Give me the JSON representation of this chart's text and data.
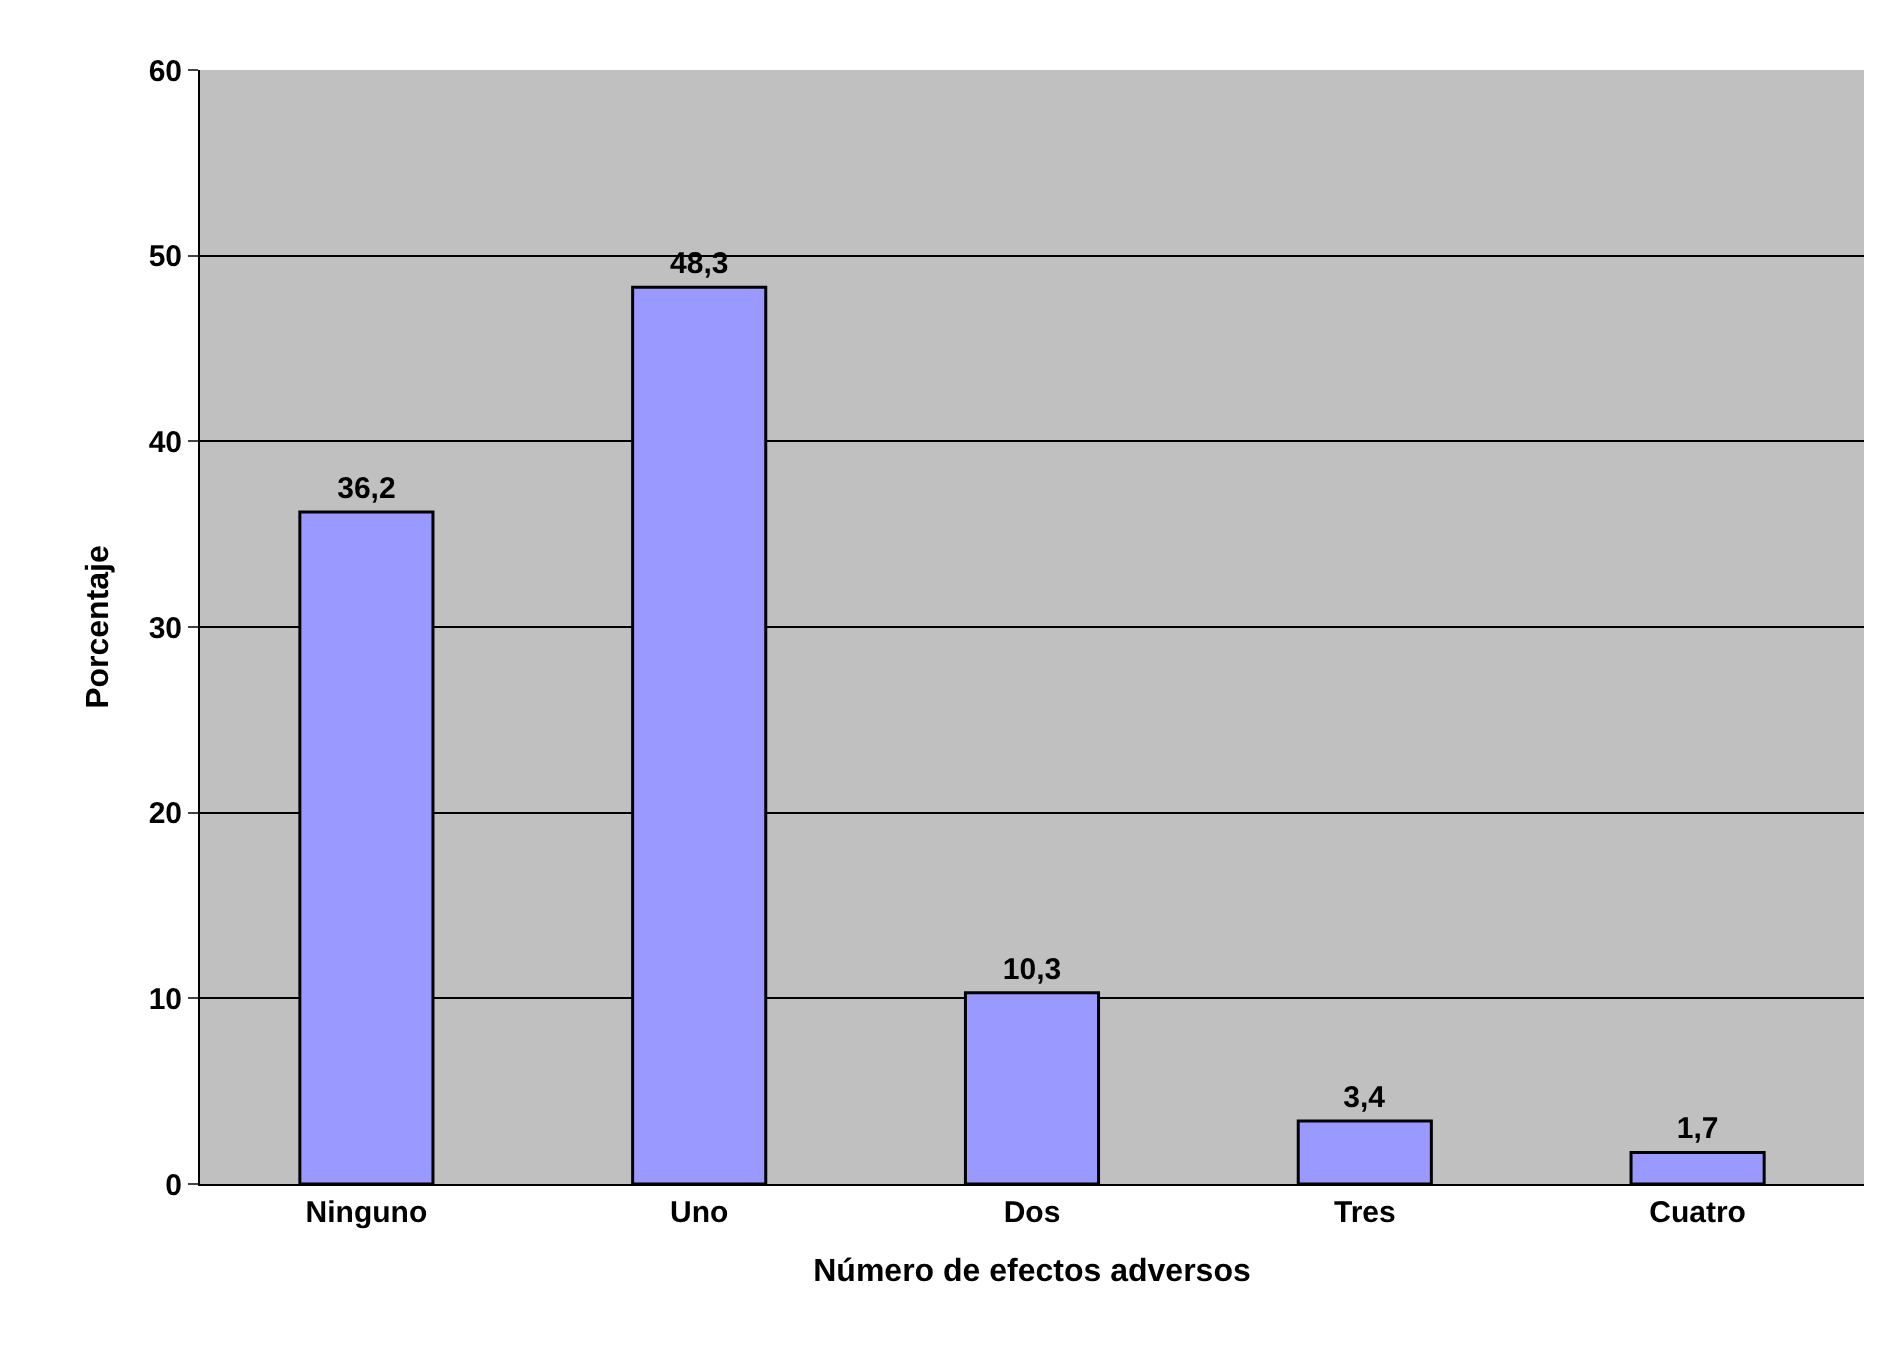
{
  "chart_data": {
    "type": "bar",
    "xlabel": "Número de efectos adversos",
    "ylabel": "Porcentaje",
    "categories": [
      "Ninguno",
      "Uno",
      "Dos",
      "Tres",
      "Cuatro"
    ],
    "values": [
      36.2,
      48.3,
      10.3,
      3.4,
      1.7
    ],
    "value_labels": [
      "36,2",
      "48,3",
      "10,3",
      "3,4",
      "1,7"
    ],
    "color": "#9999ff",
    "ylim": [
      0,
      60
    ],
    "yticks": [
      0,
      10,
      20,
      30,
      40,
      50,
      60
    ],
    "grid": "y",
    "legend": false
  }
}
